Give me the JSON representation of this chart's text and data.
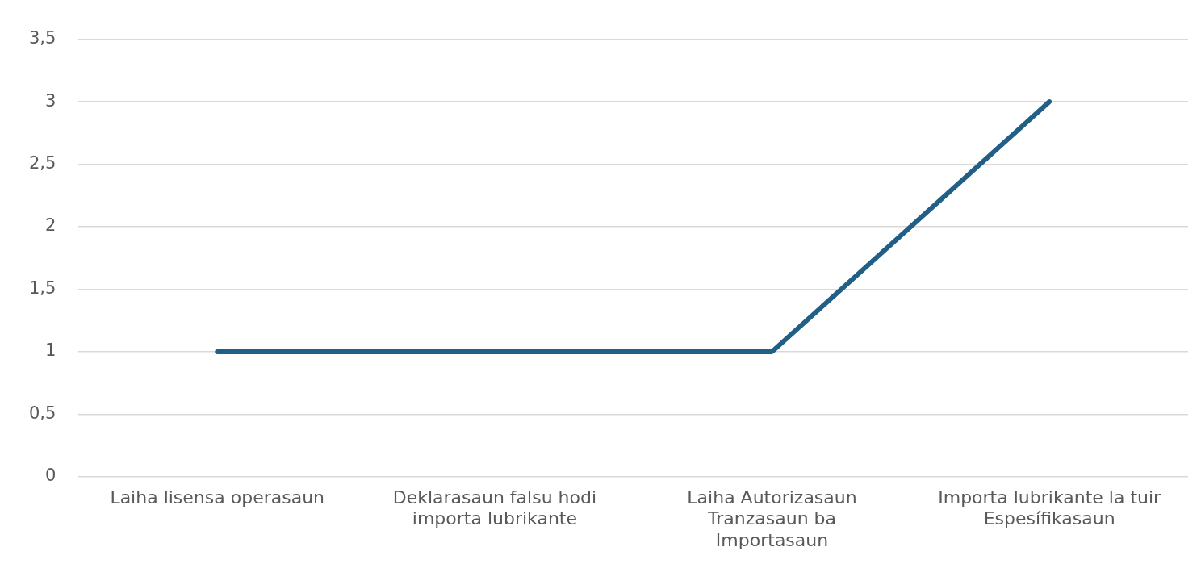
{
  "chart_data": {
    "type": "line",
    "categories": [
      "Laiha lisensa operasaun",
      "Deklarasaun falsu hodi\nimporta lubrikante",
      "Laiha Autorizasaun\nTranzasaun ba\nImportasaun",
      "Importa lubrikante la tuir\nEspesífikasaun"
    ],
    "values": [
      1,
      1,
      1,
      3
    ],
    "color": "#215f86",
    "ylim": [
      0,
      3.5
    ],
    "yticks": [
      0,
      {
        "value": 0.5,
        "label": "0,5"
      },
      1,
      {
        "value": 1.5,
        "label": "1,5"
      },
      2,
      {
        "value": 2.5,
        "label": "2,5"
      },
      3,
      {
        "value": 3.5,
        "label": "3,5"
      }
    ],
    "grid": "y",
    "legend": false,
    "marker": "none",
    "line_style": "solid"
  }
}
